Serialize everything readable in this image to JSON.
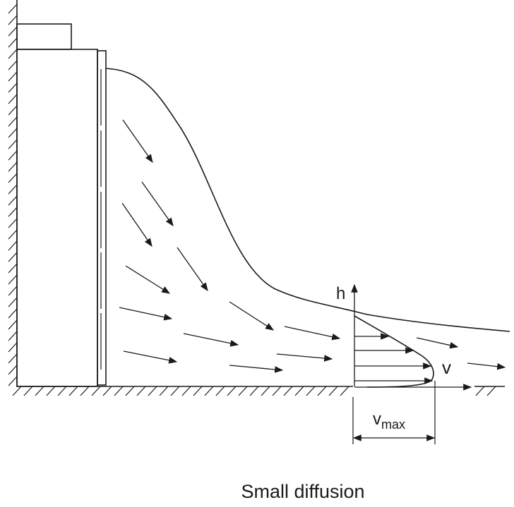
{
  "labels": {
    "h": "h",
    "v": "v",
    "vmax_main": "v",
    "vmax_sub": "max"
  },
  "caption": "Small diffusion",
  "colors": {
    "line": "#1a1a1a",
    "background": "#ffffff"
  },
  "icons": {
    "arrowhead": "filled-triangle-arrowhead"
  }
}
